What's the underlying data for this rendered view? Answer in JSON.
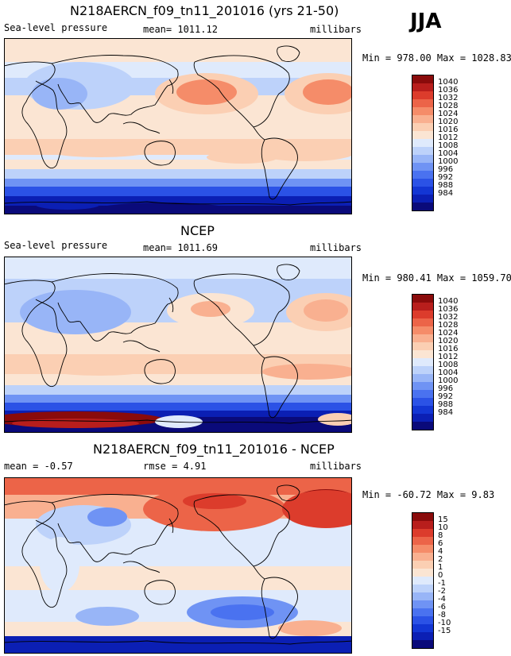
{
  "season": "JJA",
  "palettes": {
    "abs": [
      "#0a0a7a",
      "#0b1fb4",
      "#1336d4",
      "#2b52e6",
      "#4a72f0",
      "#6f93f4",
      "#98b5f7",
      "#bdd2fa",
      "#dfeafc",
      "#fbe5d3",
      "#fbcfb3",
      "#f9b090",
      "#f58c69",
      "#ec6448",
      "#dc3c2c",
      "#b81e1c",
      "#8a0b0b"
    ],
    "diff": [
      "#0a0a7a",
      "#0b1fb4",
      "#1336d4",
      "#2b52e6",
      "#4a72f0",
      "#6f93f4",
      "#98b5f7",
      "#bdd2fa",
      "#dfeafc",
      "#fbe5d3",
      "#fbcfb3",
      "#f9b090",
      "#f58c69",
      "#ec6448",
      "#dc3c2c",
      "#b81e1c",
      "#8a0b0b"
    ]
  },
  "chart_data": [
    {
      "type": "heatmap",
      "title": "N218AERCN_f09_tn11_201016 (yrs 21-50)",
      "left_label": "Sea-level pressure",
      "center_label": "mean=  1011.12",
      "right_label": "millibars",
      "stats": "Min = 978.00 Max = 1028.83",
      "min": 978.0,
      "max": 1028.83,
      "mean": 1011.12,
      "units": "millibars",
      "contour_levels": [
        984,
        988,
        992,
        996,
        1000,
        1004,
        1008,
        1012,
        1016,
        1020,
        1024,
        1028,
        1032,
        1036,
        1040
      ],
      "colorbar_labels": [
        "1040",
        "1036",
        "1032",
        "1028",
        "1024",
        "1020",
        "1016",
        "1012",
        "1008",
        "1004",
        "1000",
        "996",
        "992",
        "988",
        "984"
      ]
    },
    {
      "type": "heatmap",
      "title": "NCEP",
      "left_label": "Sea-level pressure",
      "center_label": "mean=  1011.69",
      "right_label": "millibars",
      "stats": "Min = 980.41 Max = 1059.70",
      "min": 980.41,
      "max": 1059.7,
      "mean": 1011.69,
      "units": "millibars",
      "contour_levels": [
        984,
        988,
        992,
        996,
        1000,
        1004,
        1008,
        1012,
        1016,
        1020,
        1024,
        1028,
        1032,
        1036,
        1040
      ],
      "colorbar_labels": [
        "1040",
        "1036",
        "1032",
        "1028",
        "1024",
        "1020",
        "1016",
        "1012",
        "1008",
        "1004",
        "1000",
        "996",
        "992",
        "988",
        "984"
      ]
    },
    {
      "type": "heatmap",
      "title": "N218AERCN_f09_tn11_201016 - NCEP",
      "left_label": "mean =   -0.57",
      "center_label": "rmse =    4.91",
      "right_label": "millibars",
      "stats": "Min = -60.72 Max =   9.83",
      "min": -60.72,
      "max": 9.83,
      "mean": -0.57,
      "rmse": 4.91,
      "units": "millibars",
      "contour_levels": [
        -15,
        -10,
        -8,
        -6,
        -4,
        -2,
        -1,
        0,
        1,
        2,
        4,
        6,
        8,
        10,
        15
      ],
      "colorbar_labels": [
        "15",
        "10",
        "8",
        "6",
        "4",
        "2",
        "1",
        "0",
        "-1",
        "-2",
        "-4",
        "-6",
        "-8",
        "-10",
        "-15"
      ]
    }
  ]
}
